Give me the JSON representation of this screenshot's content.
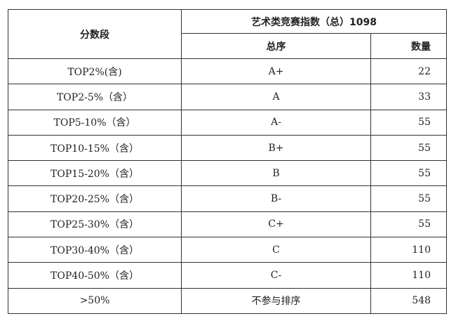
{
  "table": {
    "header": {
      "segment": "分数段",
      "group_title": "艺术类竞赛指数（总）1098",
      "rank": "总序",
      "count": "数量"
    },
    "rows": [
      {
        "segment": "TOP2%(含)",
        "rank": "A+",
        "count": "22"
      },
      {
        "segment": "TOP2-5%（含）",
        "rank": "A",
        "count": "33"
      },
      {
        "segment": "TOP5-10%（含）",
        "rank": "A-",
        "count": "55"
      },
      {
        "segment": "TOP10-15%（含）",
        "rank": "B+",
        "count": "55"
      },
      {
        "segment": "TOP15-20%（含）",
        "rank": "B",
        "count": "55"
      },
      {
        "segment": "TOP20-25%（含）",
        "rank": "B-",
        "count": "55"
      },
      {
        "segment": "TOP25-30%（含）",
        "rank": "C+",
        "count": "55"
      },
      {
        "segment": "TOP30-40%（含）",
        "rank": "C",
        "count": "110"
      },
      {
        "segment": "TOP40-50%（含）",
        "rank": "C-",
        "count": "110"
      },
      {
        "segment": ">50%",
        "rank": "不参与排序",
        "count": "548"
      }
    ]
  }
}
